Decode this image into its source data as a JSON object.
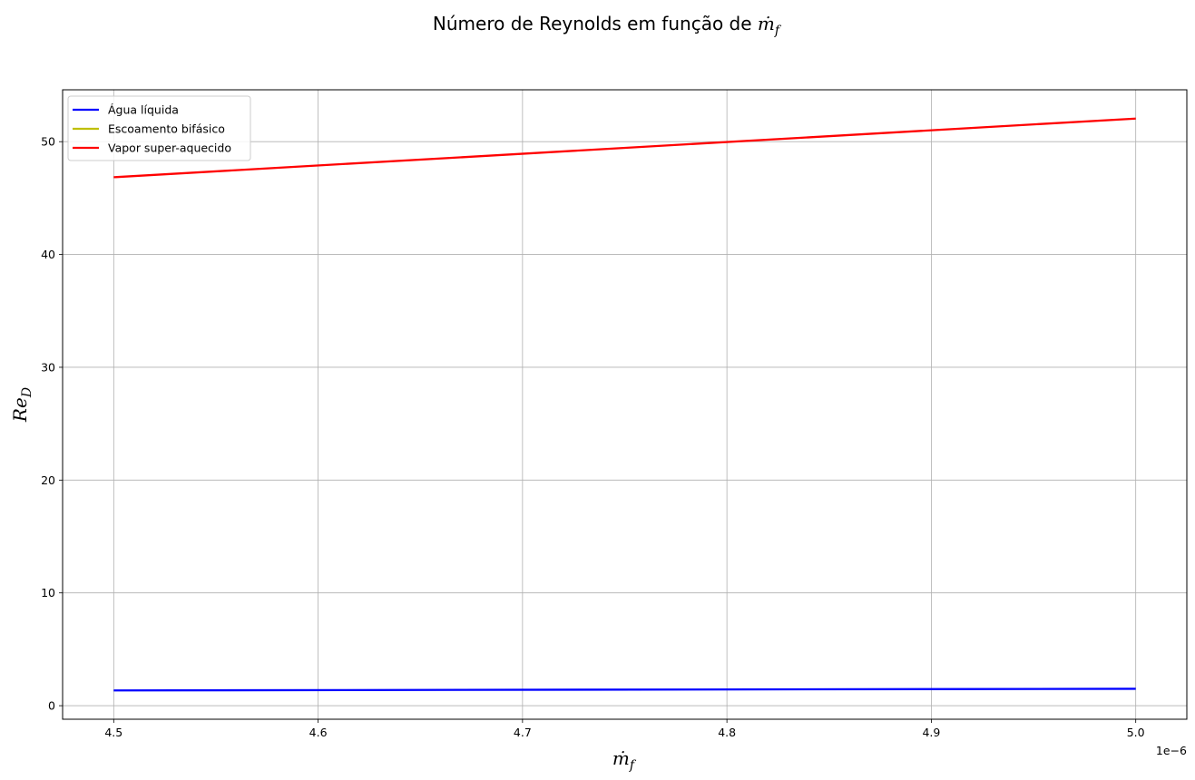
{
  "chart_data": {
    "type": "line",
    "title_main": "Número de Reynolds em função de ",
    "title_var": "ṁ",
    "title_sub": "f",
    "xlabel_main": "ṁ",
    "xlabel_sub": "f",
    "ylabel_main": "Re",
    "ylabel_sub": "D",
    "x_offset_label": "1e−6",
    "xlim": [
      4.475,
      5.025
    ],
    "ylim": [
      -1.2,
      54.6
    ],
    "x_ticks": [
      4.5,
      4.6,
      4.7,
      4.8,
      4.9,
      5.0
    ],
    "x_tick_labels": [
      "4.5",
      "4.6",
      "4.7",
      "4.8",
      "4.9",
      "5.0"
    ],
    "y_ticks": [
      0,
      10,
      20,
      30,
      40,
      50
    ],
    "y_tick_labels": [
      "0",
      "10",
      "20",
      "30",
      "40",
      "50"
    ],
    "grid": true,
    "legend_position": "upper-left",
    "series": [
      {
        "name": "Água líquida",
        "color": "#0000ff",
        "x": [
          4.5,
          5.0
        ],
        "values": [
          1.35,
          1.5
        ]
      },
      {
        "name": "Escoamento bifásico",
        "color": "#bfbf00",
        "x": [],
        "values": []
      },
      {
        "name": "Vapor super-aquecido",
        "color": "#ff0000",
        "x": [
          4.5,
          5.0
        ],
        "values": [
          46.85,
          52.05
        ]
      }
    ]
  }
}
